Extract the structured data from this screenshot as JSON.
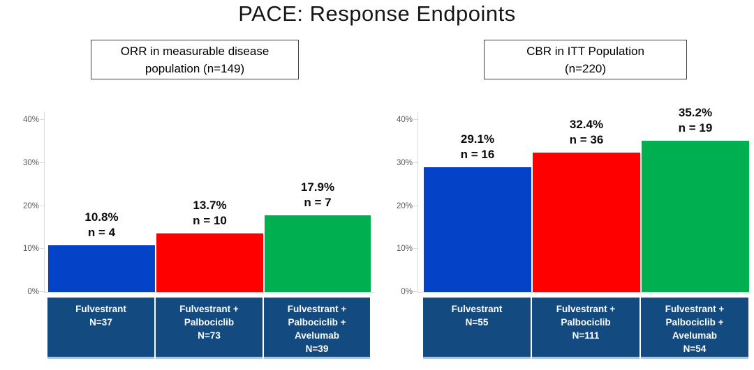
{
  "page_title": "PACE: Response Endpoints",
  "colors": {
    "bar_blue": "#0442C8",
    "bar_red": "#FF0000",
    "bar_green": "#00B050",
    "category_box_navy": "#134B80",
    "category_box_edge_lightblue": "#A9C7E8",
    "axis_gray": "#D9D9D9",
    "tick_text_gray": "#595959",
    "header_border": "#3F3F3F"
  },
  "chart_data": [
    {
      "type": "bar",
      "title": "ORR in measurable disease population (n=149)",
      "header_lines": [
        "ORR in measurable disease",
        "population (n=149)"
      ],
      "categories": [
        "Fulvestrant N=37",
        "Fulvestrant + Palbociclib N=73",
        "Fulvestrant + Palbociclib + Avelumab N=39"
      ],
      "category_lines": [
        [
          "Fulvestrant",
          "N=37"
        ],
        [
          "Fulvestrant +",
          "Palbociclib",
          "N=73"
        ],
        [
          "Fulvestrant +",
          "Palbociclib +",
          "Avelumab",
          "N=39"
        ]
      ],
      "values": [
        10.8,
        13.7,
        17.9
      ],
      "counts": [
        4,
        10,
        7
      ],
      "value_labels": [
        [
          "10.8%",
          "n = 4"
        ],
        [
          "13.7%",
          "n = 10"
        ],
        [
          "17.9%",
          "n = 7"
        ]
      ],
      "bar_colors": [
        "#0442C8",
        "#FF0000",
        "#00B050"
      ],
      "ylim": [
        0,
        40
      ],
      "yticks": [
        "0%",
        "10%",
        "20%",
        "30%",
        "40%"
      ],
      "grid": false,
      "legend": false
    },
    {
      "type": "bar",
      "title": "CBR in ITT Population (n=220)",
      "header_lines": [
        "CBR in ITT Population",
        "(n=220)"
      ],
      "categories": [
        "Fulvestrant N=55",
        "Fulvestrant + Palbociclib N=111",
        "Fulvestrant + Palbociclib + Avelumab N=54"
      ],
      "category_lines": [
        [
          "Fulvestrant",
          "N=55"
        ],
        [
          "Fulvestrant +",
          "Palbociclib",
          "N=111"
        ],
        [
          "Fulvestrant +",
          "Palbociclib +",
          "Avelumab",
          "N=54"
        ]
      ],
      "values": [
        29.1,
        32.4,
        35.2
      ],
      "counts": [
        16,
        36,
        19
      ],
      "value_labels": [
        [
          "29.1%",
          "n = 16"
        ],
        [
          "32.4%",
          "n = 36"
        ],
        [
          "35.2%",
          "n = 19"
        ]
      ],
      "bar_colors": [
        "#0442C8",
        "#FF0000",
        "#00B050"
      ],
      "ylim": [
        0,
        40
      ],
      "yticks": [
        "0%",
        "10%",
        "20%",
        "30%",
        "40%"
      ],
      "grid": false,
      "legend": false
    }
  ]
}
